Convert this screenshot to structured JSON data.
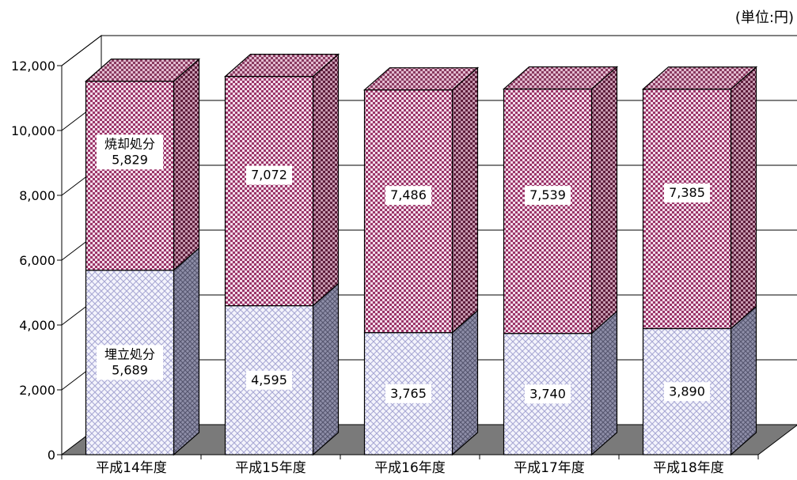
{
  "chart_data": {
    "type": "bar",
    "stacked": true,
    "three_d": true,
    "unit_label": "(単位:円)",
    "categories": [
      "平成14年度",
      "平成15年度",
      "平成16年度",
      "平成17年度",
      "平成18年度"
    ],
    "series": [
      {
        "name": "埋立処分",
        "values": [
          5689,
          4595,
          3765,
          3740,
          3890
        ],
        "labels": [
          "5,689",
          "4,595",
          "3,765",
          "3,740",
          "3,890"
        ],
        "color": "#d8d8f0"
      },
      {
        "name": "焼却処分",
        "values": [
          5829,
          7072,
          7486,
          7539,
          7385
        ],
        "labels": [
          "5,829",
          "7,072",
          "7,486",
          "7,539",
          "7,385"
        ],
        "color": "#a0436e"
      }
    ],
    "ylim": [
      0,
      12000
    ],
    "yticks": [
      0,
      2000,
      4000,
      6000,
      8000,
      10000,
      12000
    ],
    "ytick_labels": [
      "0",
      "2,000",
      "4,000",
      "6,000",
      "8,000",
      "10,000",
      "12,000"
    ],
    "grid": true,
    "legend": "none"
  }
}
